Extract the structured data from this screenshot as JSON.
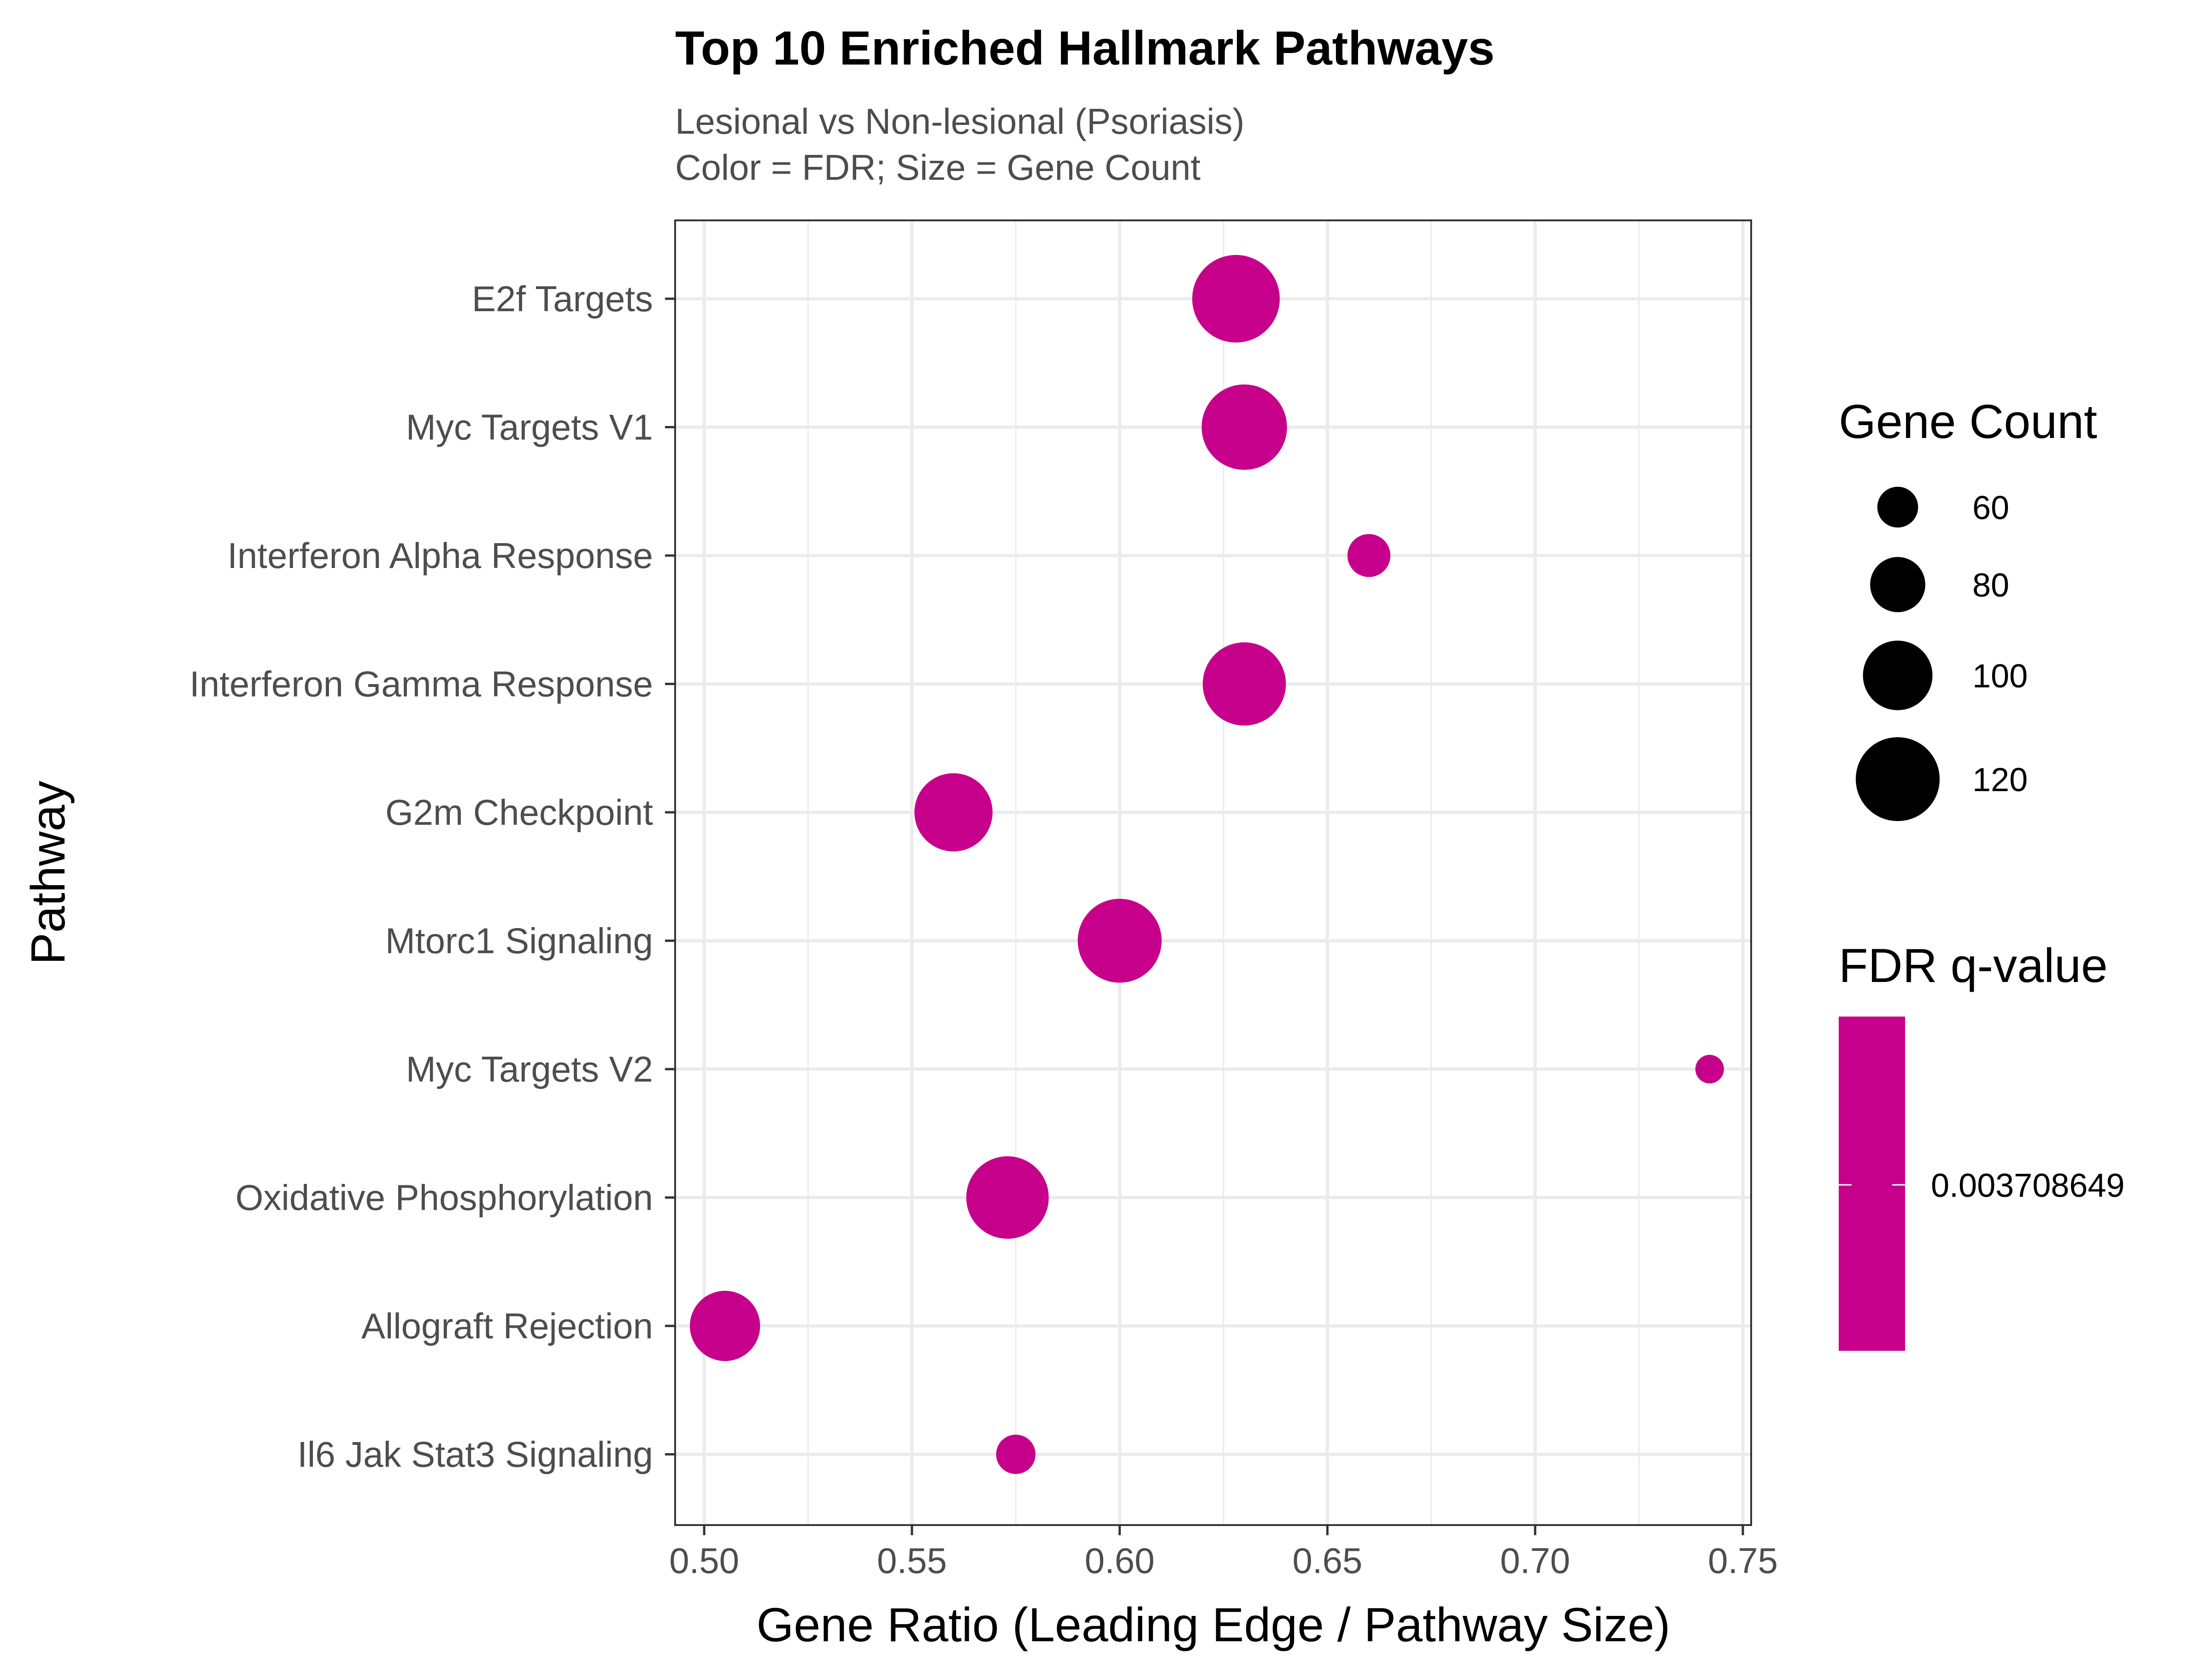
{
  "chart_data": {
    "type": "scatter",
    "title": "Top 10 Enriched Hallmark Pathways",
    "subtitle": [
      "Lesional vs Non-lesional (Psoriasis)",
      "Color = FDR; Size = Gene Count"
    ],
    "xlabel": "Gene Ratio (Leading Edge / Pathway Size)",
    "ylabel": "Pathway",
    "xlim": [
      0.493,
      0.752
    ],
    "x_ticks": [
      0.5,
      0.55,
      0.6,
      0.65,
      0.7,
      0.75
    ],
    "x_tick_labels": [
      "0.50",
      "0.55",
      "0.60",
      "0.65",
      "0.70",
      "0.75"
    ],
    "grid": true,
    "point_color": "#C7008C",
    "categories": [
      "E2f Targets",
      "Myc Targets V1",
      "Interferon Alpha Response",
      "Interferon Gamma Response",
      "G2m Checkpoint",
      "Mtorc1 Signaling",
      "Myc Targets V2",
      "Oxidative Phosphorylation",
      "Allograft Rejection",
      "Il6 Jak Stat3 Signaling"
    ],
    "points": [
      {
        "pathway": "E2f Targets",
        "gene_ratio": 0.628,
        "gene_count": 125,
        "fdr": 0.003708649
      },
      {
        "pathway": "Myc Targets V1",
        "gene_ratio": 0.63,
        "gene_count": 122,
        "fdr": 0.003708649
      },
      {
        "pathway": "Interferon Alpha Response",
        "gene_ratio": 0.66,
        "gene_count": 63,
        "fdr": 0.003708649
      },
      {
        "pathway": "Interferon Gamma Response",
        "gene_ratio": 0.63,
        "gene_count": 119,
        "fdr": 0.003708649
      },
      {
        "pathway": "G2m Checkpoint",
        "gene_ratio": 0.56,
        "gene_count": 112,
        "fdr": 0.003708649
      },
      {
        "pathway": "Mtorc1 Signaling",
        "gene_ratio": 0.6,
        "gene_count": 120,
        "fdr": 0.003708649
      },
      {
        "pathway": "Myc Targets V2",
        "gene_ratio": 0.742,
        "gene_count": 43,
        "fdr": 0.003708649
      },
      {
        "pathway": "Oxidative Phosphorylation",
        "gene_ratio": 0.573,
        "gene_count": 118,
        "fdr": 0.003708649
      },
      {
        "pathway": "Allograft Rejection",
        "gene_ratio": 0.505,
        "gene_count": 101,
        "fdr": 0.003708649
      },
      {
        "pathway": "Il6 Jak Stat3 Signaling",
        "gene_ratio": 0.575,
        "gene_count": 58,
        "fdr": 0.003708649
      }
    ],
    "size_legend": {
      "title": "Gene Count",
      "breaks": [
        60,
        80,
        100,
        120
      ],
      "labels": [
        "60",
        "80",
        "100",
        "120"
      ]
    },
    "color_legend": {
      "title": "FDR q-value",
      "label": "0.003708649",
      "color": "#C7008C"
    },
    "legend_position": "right"
  }
}
